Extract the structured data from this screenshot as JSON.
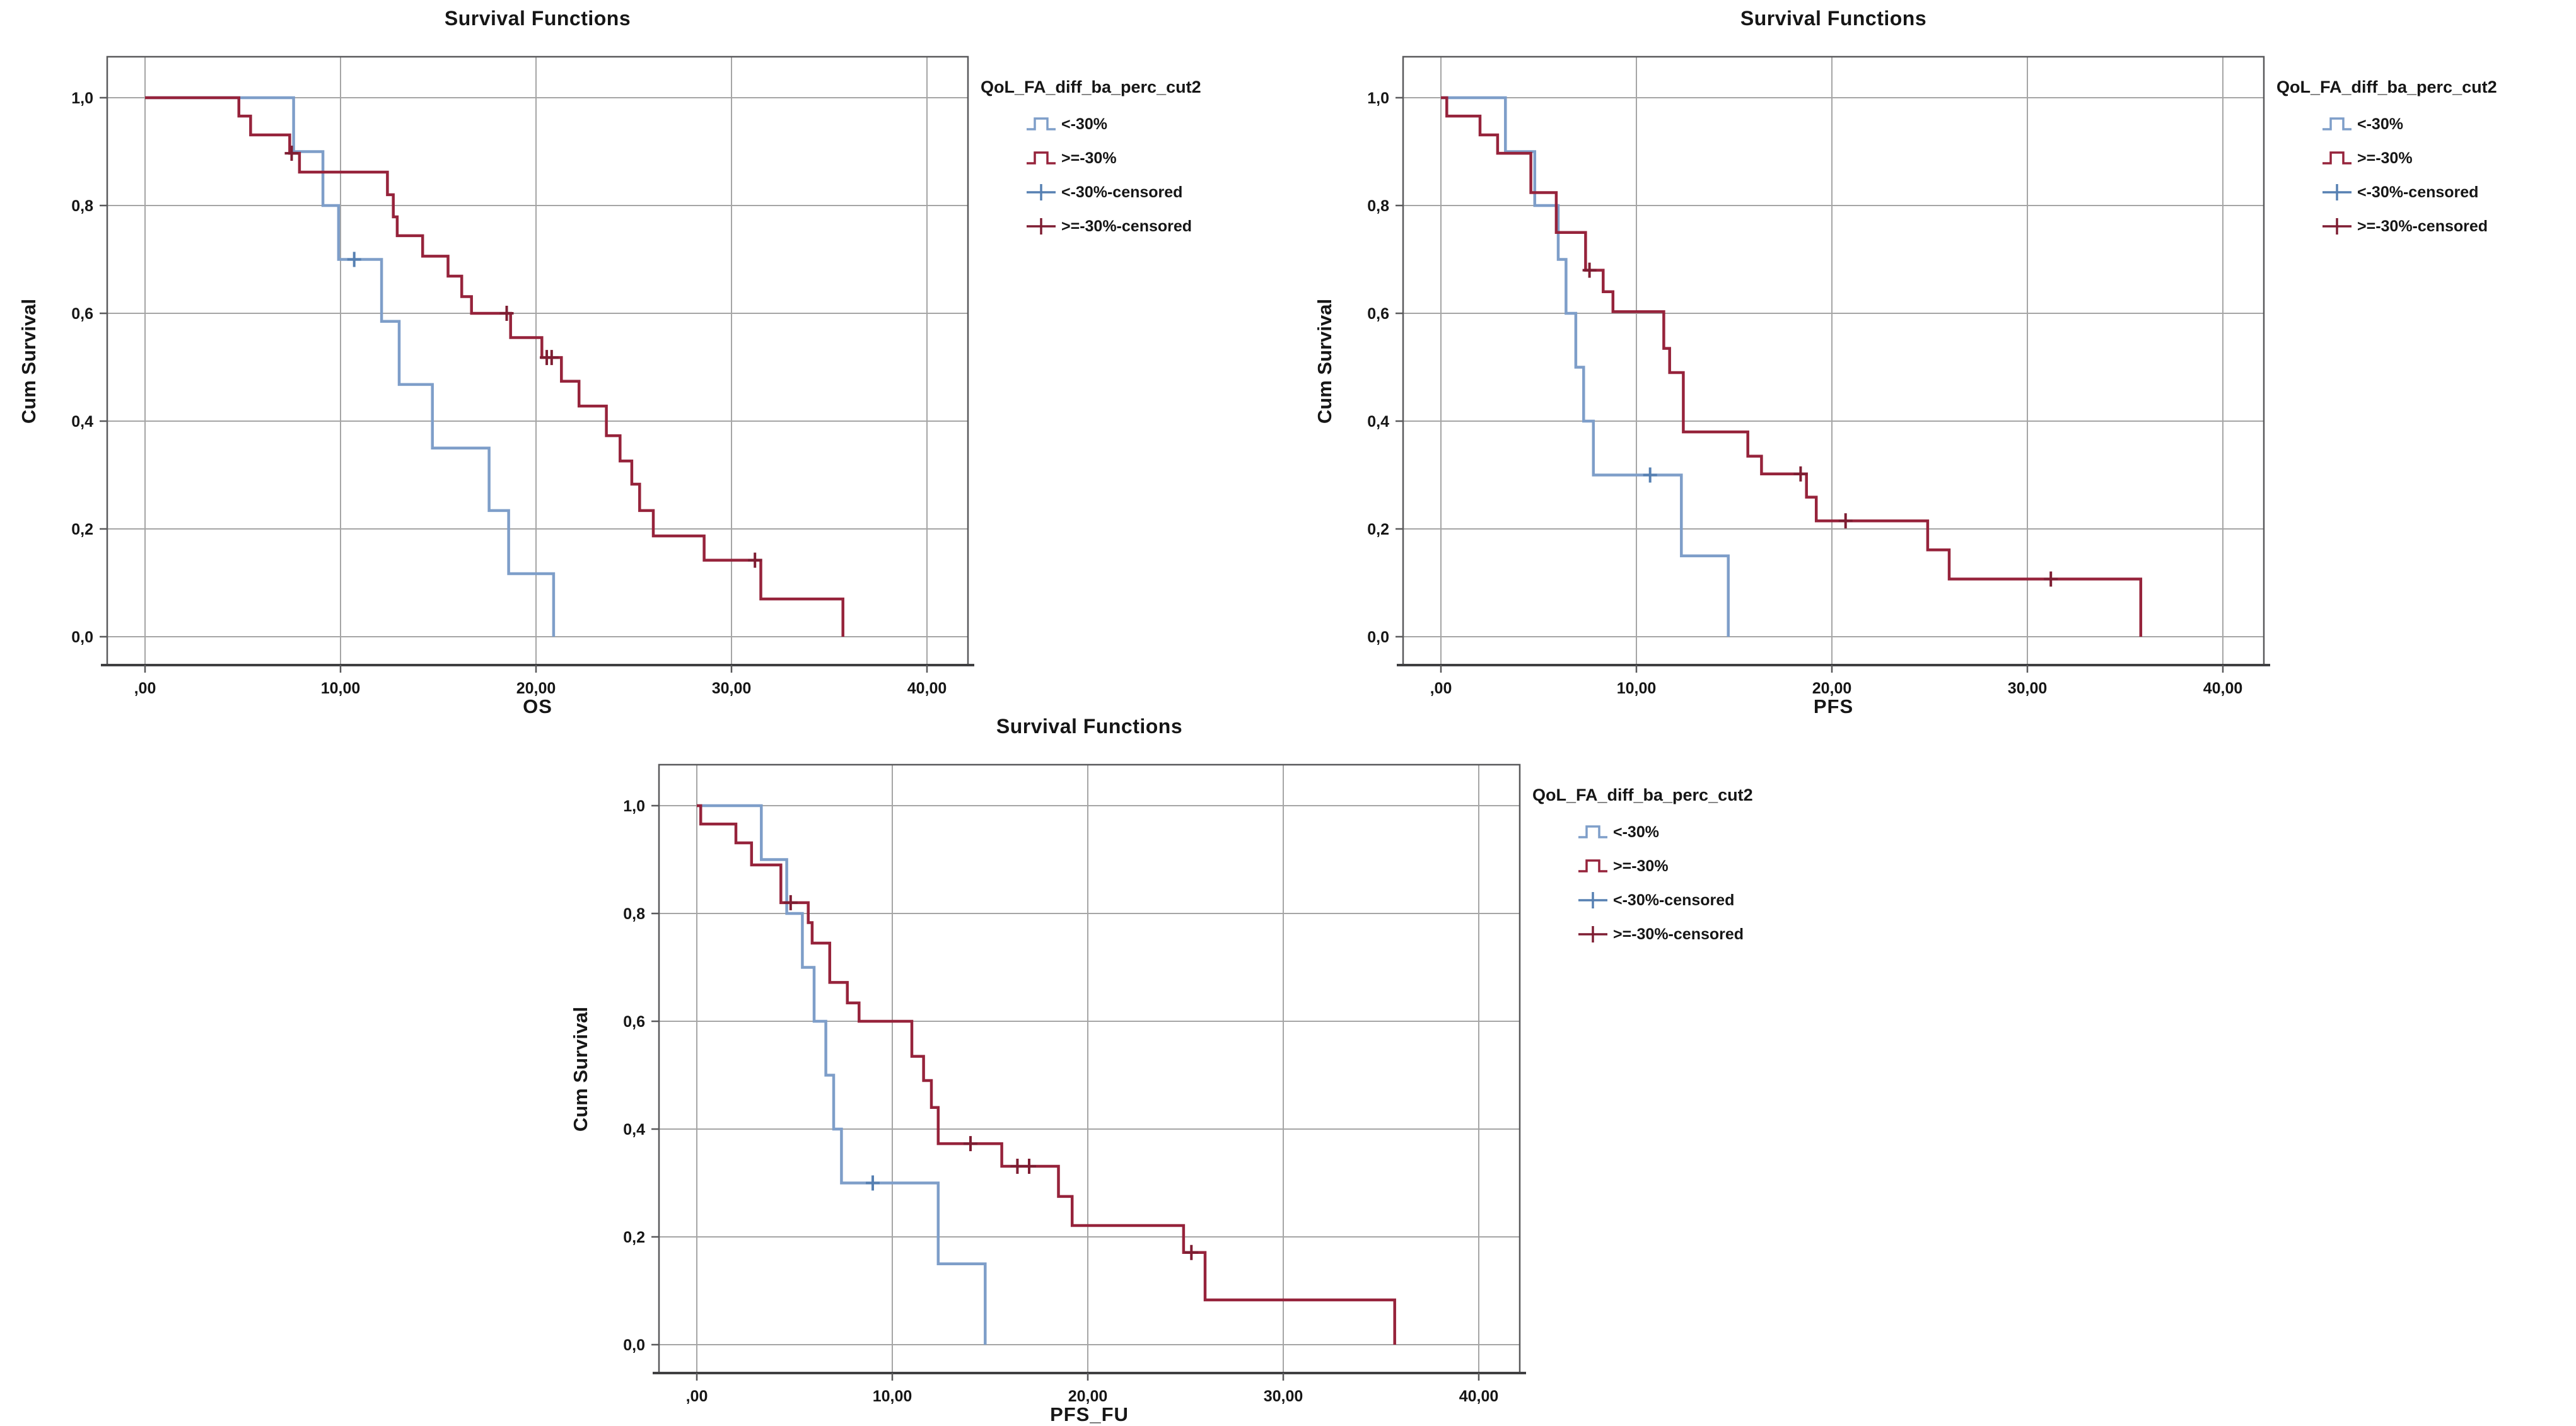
{
  "page": {
    "background_color": "#ffffff"
  },
  "palette": {
    "blue_line": "#7E9EC9",
    "blue_censor": "#5680B2",
    "red_line": "#96233B",
    "red_censor": "#7E1D32",
    "grid_color": "#A5A5A5",
    "frame_color": "#59595B",
    "axis_line_color": "#3F3F41",
    "text_color": "#161616"
  },
  "chart_data": [
    {
      "type": "line",
      "subtype": "kaplan_meier_step",
      "title": "Survival Functions",
      "ylabel": "Cum Survival",
      "xlabel": "OS",
      "legend_title": "QoL_FA_diff_ba_perc_cut2",
      "legend_position": "right",
      "grid": true,
      "xlim": [
        0,
        42
      ],
      "ylim": [
        0,
        1.05
      ],
      "x_tick_labels": [
        ",00",
        "10,00",
        "20,00",
        "30,00",
        "40,00"
      ],
      "x_tick_values": [
        0,
        10,
        20,
        30,
        40
      ],
      "y_tick_labels": [
        "0,0",
        "0,2",
        "0,4",
        "0,6",
        "0,8",
        "1,0"
      ],
      "y_tick_values": [
        0,
        0.2,
        0.4,
        0.6,
        0.8,
        1.0
      ],
      "legend": [
        {
          "label": "<-30%",
          "swatch": "step",
          "color_key": "blue_line"
        },
        {
          "label": ">=-30%",
          "swatch": "step",
          "color_key": "red_line"
        },
        {
          "label": "<-30%-censored",
          "swatch": "plus",
          "color_key": "blue_censor"
        },
        {
          "label": ">=-30%-censored",
          "swatch": "plus",
          "color_key": "red_censor"
        }
      ],
      "series": [
        {
          "name": "<-30%",
          "color_key": "blue_line",
          "censor_color_key": "blue_censor",
          "start": [
            0,
            1.0
          ],
          "steps": [
            [
              7.6,
              0.9
            ],
            [
              9.1,
              0.8
            ],
            [
              9.9,
              0.7
            ],
            [
              12.1,
              0.585
            ],
            [
              13.0,
              0.468
            ],
            [
              14.7,
              0.35
            ],
            [
              17.6,
              0.234
            ],
            [
              18.6,
              0.117
            ],
            [
              20.9,
              0
            ]
          ],
          "censored": [
            [
              10.7,
              0.7
            ]
          ]
        },
        {
          "name": ">=-30%",
          "color_key": "red_line",
          "censor_color_key": "red_censor",
          "start": [
            0,
            1.0
          ],
          "steps": [
            [
              4.8,
              0.966
            ],
            [
              5.4,
              0.931
            ],
            [
              7.4,
              0.897
            ],
            [
              7.9,
              0.862
            ],
            [
              12.4,
              0.82
            ],
            [
              12.7,
              0.779
            ],
            [
              12.9,
              0.744
            ],
            [
              14.2,
              0.706
            ],
            [
              15.5,
              0.669
            ],
            [
              16.2,
              0.631
            ],
            [
              16.7,
              0.6
            ],
            [
              18.7,
              0.555
            ],
            [
              20.3,
              0.518
            ],
            [
              21.3,
              0.474
            ],
            [
              22.2,
              0.428
            ],
            [
              23.6,
              0.373
            ],
            [
              24.3,
              0.326
            ],
            [
              24.9,
              0.283
            ],
            [
              25.3,
              0.234
            ],
            [
              26.0,
              0.187
            ],
            [
              28.6,
              0.142
            ],
            [
              31.5,
              0.07
            ],
            [
              35.7,
              0
            ]
          ],
          "censored": [
            [
              7.5,
              0.897
            ],
            [
              18.5,
              0.6
            ],
            [
              20.55,
              0.518
            ],
            [
              20.8,
              0.518
            ],
            [
              31.2,
              0.142
            ]
          ]
        }
      ]
    },
    {
      "type": "line",
      "subtype": "kaplan_meier_step",
      "title": "Survival Functions",
      "ylabel": "Cum Survival",
      "xlabel": "PFS",
      "legend_title": "QoL_FA_diff_ba_perc_cut2",
      "legend_position": "right",
      "grid": true,
      "xlim": [
        0,
        42
      ],
      "ylim": [
        0,
        1.05
      ],
      "x_tick_labels": [
        ",00",
        "10,00",
        "20,00",
        "30,00",
        "40,00"
      ],
      "x_tick_values": [
        0,
        10,
        20,
        30,
        40
      ],
      "y_tick_labels": [
        "0,0",
        "0,2",
        "0,4",
        "0,6",
        "0,8",
        "1,0"
      ],
      "y_tick_values": [
        0,
        0.2,
        0.4,
        0.6,
        0.8,
        1.0
      ],
      "legend": [
        {
          "label": "<-30%",
          "swatch": "step",
          "color_key": "blue_line"
        },
        {
          "label": ">=-30%",
          "swatch": "step",
          "color_key": "red_line"
        },
        {
          "label": "<-30%-censored",
          "swatch": "plus",
          "color_key": "blue_censor"
        },
        {
          "label": ">=-30%-censored",
          "swatch": "plus",
          "color_key": "red_censor"
        }
      ],
      "series": [
        {
          "name": "<-30%",
          "color_key": "blue_line",
          "censor_color_key": "blue_censor",
          "start": [
            0,
            1.0
          ],
          "steps": [
            [
              3.3,
              0.9
            ],
            [
              4.8,
              0.8
            ],
            [
              6.0,
              0.7
            ],
            [
              6.4,
              0.6
            ],
            [
              6.9,
              0.5
            ],
            [
              7.3,
              0.4
            ],
            [
              7.8,
              0.3
            ],
            [
              12.3,
              0.15
            ],
            [
              14.7,
              0
            ]
          ],
          "censored": [
            [
              10.7,
              0.3
            ]
          ]
        },
        {
          "name": ">=-30%",
          "color_key": "red_line",
          "censor_color_key": "red_censor",
          "start": [
            0,
            1.0
          ],
          "steps": [
            [
              0.3,
              0.966
            ],
            [
              2.0,
              0.931
            ],
            [
              2.9,
              0.897
            ],
            [
              4.6,
              0.824
            ],
            [
              5.9,
              0.75
            ],
            [
              7.4,
              0.68
            ],
            [
              8.3,
              0.64
            ],
            [
              8.8,
              0.603
            ],
            [
              11.4,
              0.535
            ],
            [
              11.7,
              0.49
            ],
            [
              12.4,
              0.38
            ],
            [
              15.7,
              0.335
            ],
            [
              16.4,
              0.302
            ],
            [
              18.7,
              0.259
            ],
            [
              19.2,
              0.215
            ],
            [
              24.9,
              0.161
            ],
            [
              26.0,
              0.107
            ],
            [
              35.8,
              0
            ]
          ],
          "censored": [
            [
              7.6,
              0.68
            ],
            [
              18.4,
              0.302
            ],
            [
              20.7,
              0.215
            ],
            [
              31.2,
              0.107
            ]
          ]
        }
      ]
    },
    {
      "type": "line",
      "subtype": "kaplan_meier_step",
      "title": "Survival Functions",
      "ylabel": "Cum Survival",
      "xlabel": "PFS_FU",
      "legend_title": "QoL_FA_diff_ba_perc_cut2",
      "legend_position": "right",
      "grid": true,
      "xlim": [
        0,
        42
      ],
      "ylim": [
        0,
        1.05
      ],
      "x_tick_labels": [
        ",00",
        "10,00",
        "20,00",
        "30,00",
        "40,00"
      ],
      "x_tick_values": [
        0,
        10,
        20,
        30,
        40
      ],
      "y_tick_labels": [
        "0,0",
        "0,2",
        "0,4",
        "0,6",
        "0,8",
        "1,0"
      ],
      "y_tick_values": [
        0,
        0.2,
        0.4,
        0.6,
        0.8,
        1.0
      ],
      "legend": [
        {
          "label": "<-30%",
          "swatch": "step",
          "color_key": "blue_line"
        },
        {
          "label": ">=-30%",
          "swatch": "step",
          "color_key": "red_line"
        },
        {
          "label": "<-30%-censored",
          "swatch": "plus",
          "color_key": "blue_censor"
        },
        {
          "label": ">=-30%-censored",
          "swatch": "plus",
          "color_key": "red_censor"
        }
      ],
      "series": [
        {
          "name": "<-30%",
          "color_key": "blue_line",
          "censor_color_key": "blue_censor",
          "start": [
            0,
            1.0
          ],
          "steps": [
            [
              3.3,
              0.9
            ],
            [
              4.6,
              0.8
            ],
            [
              5.4,
              0.7
            ],
            [
              6.0,
              0.6
            ],
            [
              6.6,
              0.5
            ],
            [
              7.0,
              0.4
            ],
            [
              7.4,
              0.3
            ],
            [
              12.35,
              0.15
            ],
            [
              14.75,
              0
            ]
          ],
          "censored": [
            [
              9.0,
              0.3
            ]
          ]
        },
        {
          "name": ">=-30%",
          "color_key": "red_line",
          "censor_color_key": "red_censor",
          "start": [
            0,
            1.0
          ],
          "steps": [
            [
              0.2,
              0.966
            ],
            [
              2.0,
              0.931
            ],
            [
              2.8,
              0.89
            ],
            [
              4.3,
              0.82
            ],
            [
              5.7,
              0.783
            ],
            [
              5.9,
              0.745
            ],
            [
              6.8,
              0.672
            ],
            [
              7.7,
              0.634
            ],
            [
              8.3,
              0.6
            ],
            [
              11.0,
              0.535
            ],
            [
              11.6,
              0.49
            ],
            [
              12.0,
              0.44
            ],
            [
              12.35,
              0.373
            ],
            [
              15.6,
              0.331
            ],
            [
              18.5,
              0.275
            ],
            [
              19.2,
              0.221
            ],
            [
              24.9,
              0.171
            ],
            [
              26.0,
              0.083
            ],
            [
              35.7,
              0
            ]
          ],
          "censored": [
            [
              4.8,
              0.82
            ],
            [
              14.0,
              0.373
            ],
            [
              16.4,
              0.331
            ],
            [
              17.0,
              0.331
            ],
            [
              25.3,
              0.171
            ]
          ]
        }
      ]
    }
  ]
}
